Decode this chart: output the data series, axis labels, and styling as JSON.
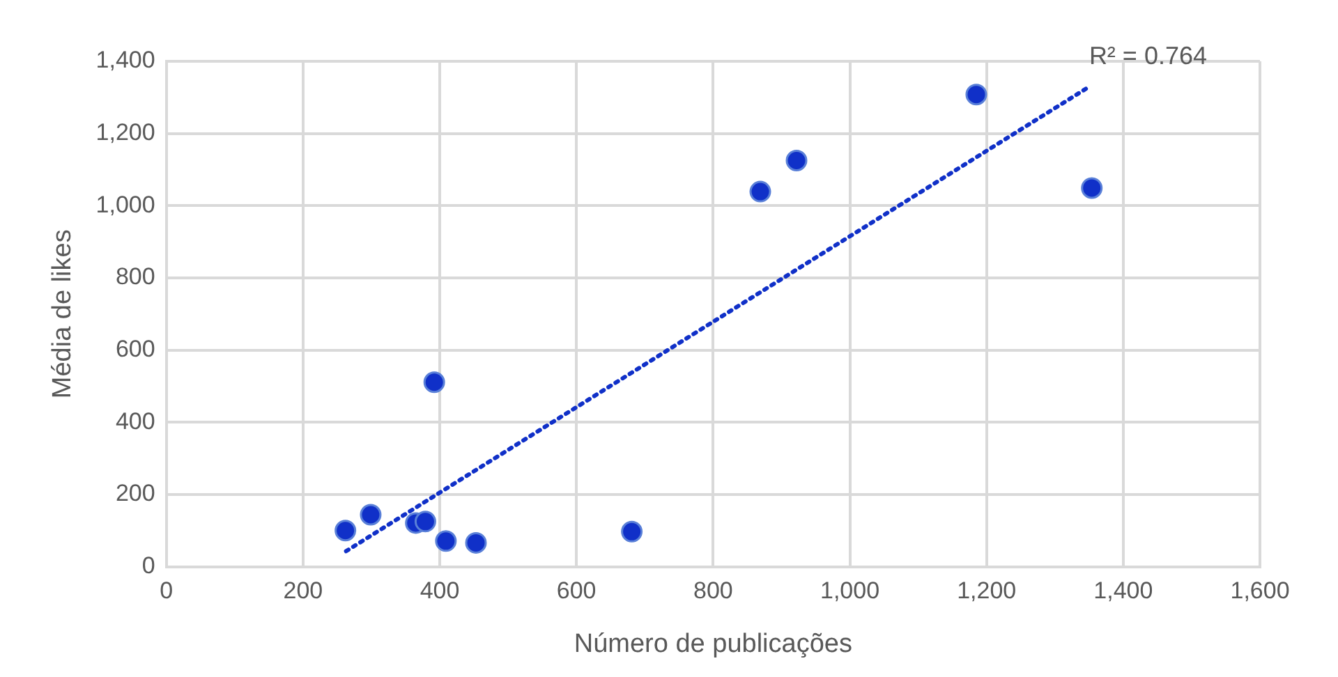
{
  "chart_data": {
    "type": "scatter",
    "xlabel": "Número de publicações",
    "ylabel": "Média de likes",
    "annotations": [
      "R² = 0.764"
    ],
    "series": [
      {
        "color": "#1030c8",
        "x": [
          262,
          299,
          365,
          379,
          392,
          409,
          453,
          681,
          869,
          922,
          1185,
          1354
        ],
        "values": [
          100,
          144,
          121,
          125,
          511,
          71,
          66,
          97,
          1039,
          1125,
          1308,
          1049
        ]
      },
      {
        "type": "line",
        "color": "#1030c8",
        "x": [
          263,
          1348
        ],
        "values": [
          43,
          1327
        ],
        "line_style": "dotted",
        "marker": "none"
      }
    ],
    "marker": "circle",
    "grid": true,
    "legend": false,
    "xlim": [
      0,
      1600
    ],
    "xticks": [
      0,
      200,
      400,
      600,
      800,
      {
        "value": 1000,
        "label": "1,000"
      },
      {
        "value": 1200,
        "label": "1,200"
      },
      {
        "value": 1400,
        "label": "1,400"
      },
      {
        "value": 1600,
        "label": "1,600"
      }
    ],
    "ylim": [
      0,
      1400
    ],
    "yticks": [
      0,
      200,
      400,
      600,
      800,
      {
        "value": 1000,
        "label": "1,000"
      },
      {
        "value": 1200,
        "label": "1,200"
      },
      {
        "value": 1400,
        "label": "1,400"
      }
    ]
  }
}
